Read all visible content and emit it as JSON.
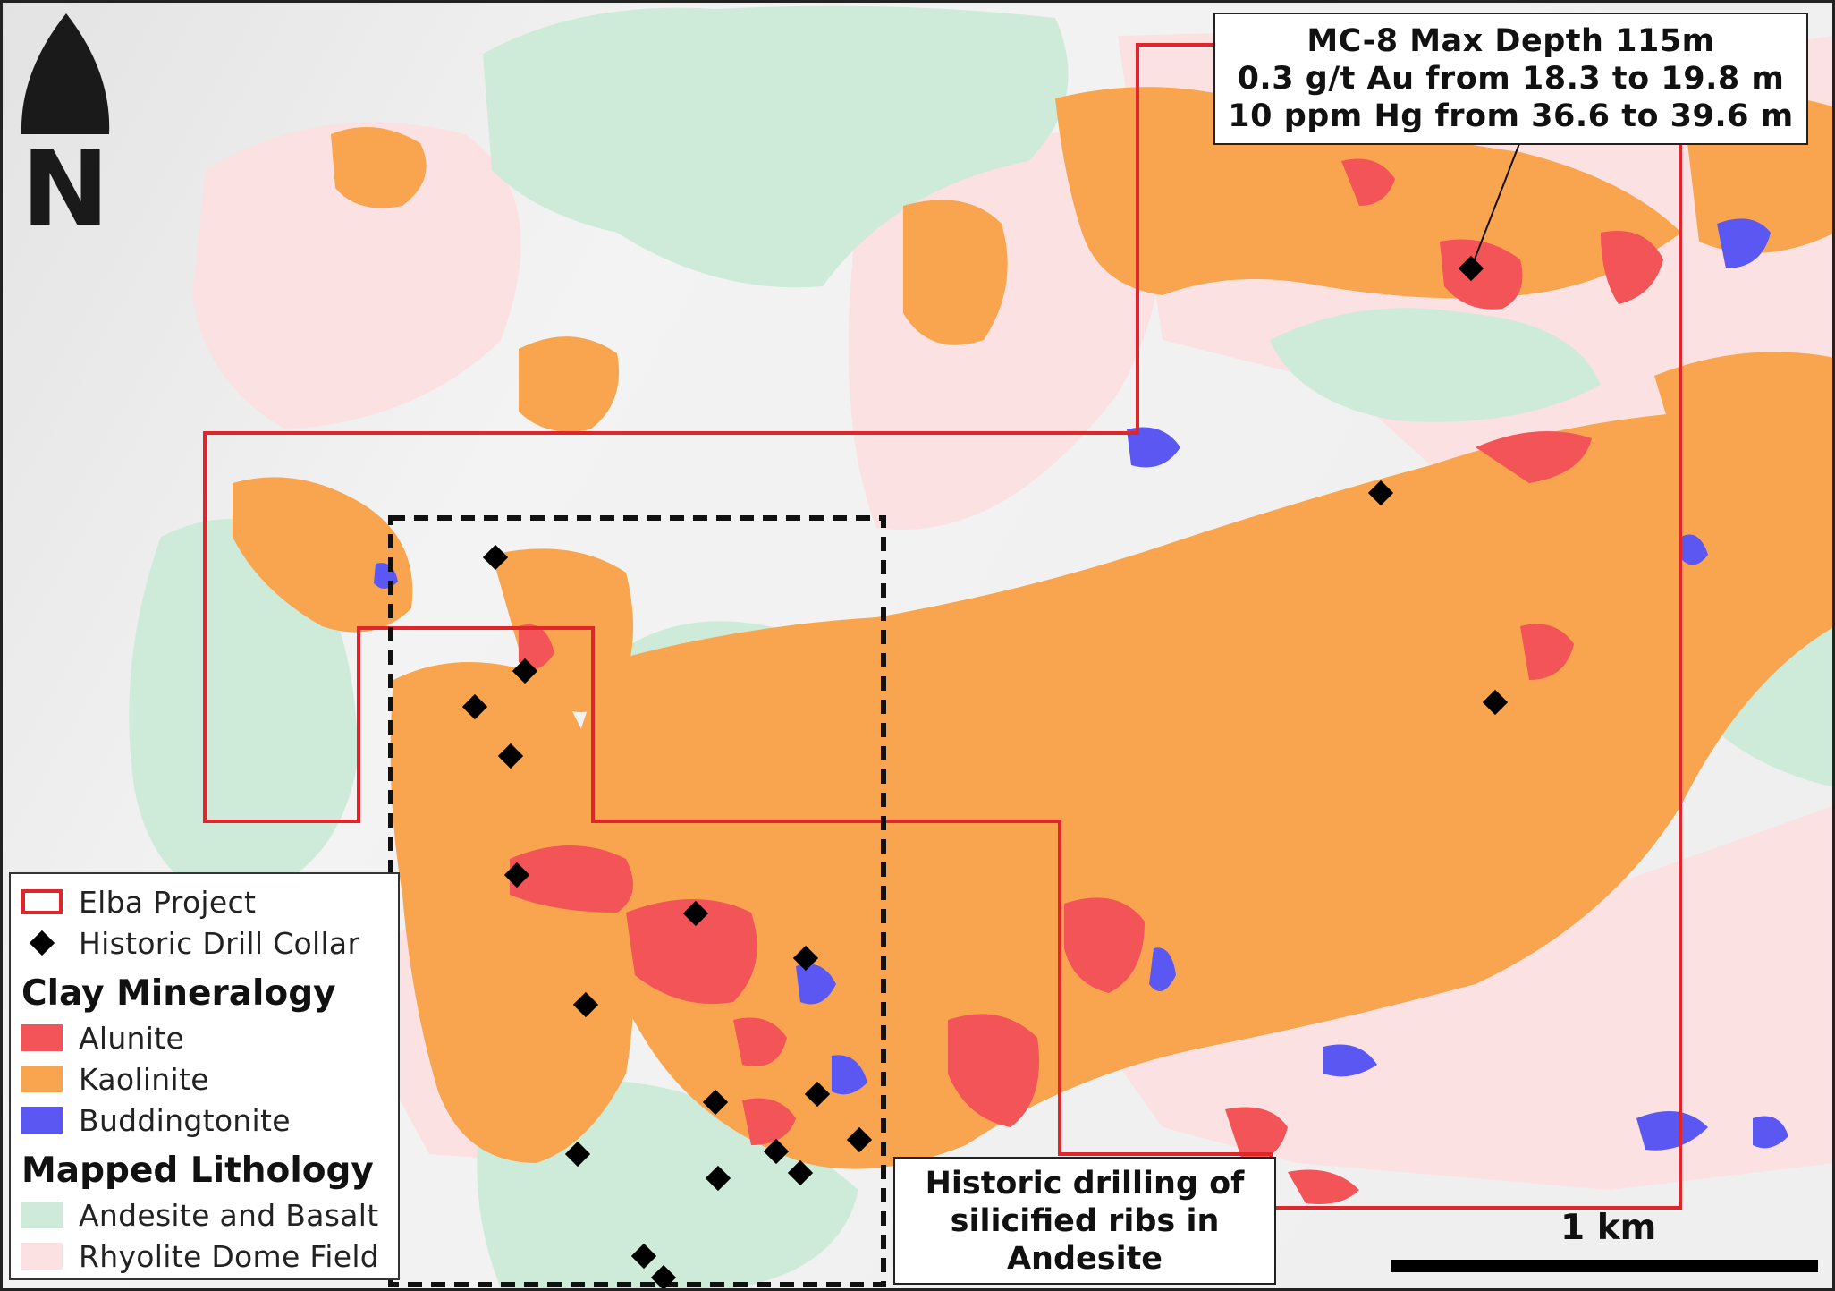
{
  "map": {
    "north_arrow_letter": "N",
    "colors": {
      "project_boundary": "#e0262b",
      "drill_collar": "#000000",
      "alunite": "#f25457",
      "kaolinite": "#f9a44f",
      "buddingtonite": "#5b57f2",
      "andesite_basalt": "#cdebd8",
      "rhyolite_dome": "#fbe1e1",
      "basemap": "#f2f2f2"
    }
  },
  "legend": {
    "items": [
      {
        "label": "Elba Project",
        "symbol": "outline-box",
        "color": "#e0262b"
      },
      {
        "label": "Historic Drill Collar",
        "symbol": "diamond",
        "color": "#000000"
      }
    ],
    "clay_heading": "Clay Mineralogy",
    "clay_items": [
      {
        "label": "Alunite",
        "color": "#f25457"
      },
      {
        "label": "Kaolinite",
        "color": "#f9a44f"
      },
      {
        "label": "Buddingtonite",
        "color": "#5b57f2"
      }
    ],
    "lith_heading": "Mapped Lithology",
    "lith_items": [
      {
        "label": "Andesite and Basalt",
        "color": "#cdebd8"
      },
      {
        "label": "Rhyolite Dome Field",
        "color": "#fbe1e1"
      }
    ]
  },
  "callout": {
    "line1": "MC-8 Max Depth 115m",
    "line2": "0.3 g/t Au from 18.3 to 19.8 m",
    "line3": "10 ppm Hg from 36.6 to 39.6 m"
  },
  "note": {
    "line1": "Historic drilling of",
    "line2": "silicified ribs in",
    "line3": "Andesite"
  },
  "scale": {
    "label": "1 km"
  }
}
